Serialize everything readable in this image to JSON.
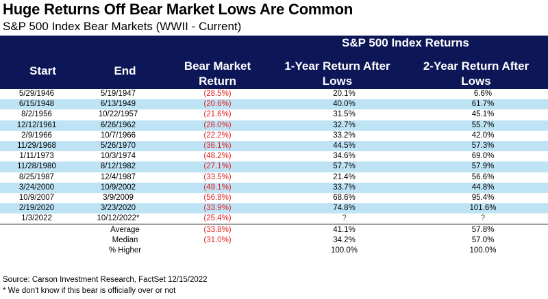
{
  "title": "Huge Returns Off Bear Market Lows Are Common",
  "subtitle": "S&P 500 Index Bear Markets (WWII - Current)",
  "header": {
    "group_label": "S&P 500 Index Returns",
    "start": "Start",
    "end": "End",
    "bear_line1": "Bear Market",
    "bear_line2": "Return",
    "one_year_line1": "1-Year Return After",
    "one_year_line2": "Lows",
    "two_year_line1": "2-Year Return After",
    "two_year_line2": "Lows"
  },
  "rows": [
    {
      "start": "5/29/1946",
      "end": "5/19/1947",
      "bear": "(28.5%)",
      "one": "20.1%",
      "two": "6.6%"
    },
    {
      "start": "6/15/1948",
      "end": "6/13/1949",
      "bear": "(20.6%)",
      "one": "40.0%",
      "two": "61.7%"
    },
    {
      "start": "8/2/1956",
      "end": "10/22/1957",
      "bear": "(21.6%)",
      "one": "31.5%",
      "two": "45.1%"
    },
    {
      "start": "12/12/1961",
      "end": "6/26/1962",
      "bear": "(28.0%)",
      "one": "32.7%",
      "two": "55.7%"
    },
    {
      "start": "2/9/1966",
      "end": "10/7/1966",
      "bear": "(22.2%)",
      "one": "33.2%",
      "two": "42.0%"
    },
    {
      "start": "11/29/1968",
      "end": "5/26/1970",
      "bear": "(36.1%)",
      "one": "44.5%",
      "two": "57.3%"
    },
    {
      "start": "1/11/1973",
      "end": "10/3/1974",
      "bear": "(48.2%)",
      "one": "34.6%",
      "two": "69.0%"
    },
    {
      "start": "11/28/1980",
      "end": "8/12/1982",
      "bear": "(27.1%)",
      "one": "57.7%",
      "two": "57.9%"
    },
    {
      "start": "8/25/1987",
      "end": "12/4/1987",
      "bear": "(33.5%)",
      "one": "21.4%",
      "two": "56.6%"
    },
    {
      "start": "3/24/2000",
      "end": "10/9/2002",
      "bear": "(49.1%)",
      "one": "33.7%",
      "two": "44.8%"
    },
    {
      "start": "10/9/2007",
      "end": "3/9/2009",
      "bear": "(56.8%)",
      "one": "68.6%",
      "two": "95.4%"
    },
    {
      "start": "2/19/2020",
      "end": "3/23/2020",
      "bear": "(33.9%)",
      "one": "74.8%",
      "two": "101.6%"
    },
    {
      "start": "1/3/2022",
      "end": "10/12/2022*",
      "bear": "(25.4%)",
      "one": "?",
      "two": "?"
    }
  ],
  "summary": [
    {
      "label": "Average",
      "bear": "(33.8%)",
      "one": "41.1%",
      "two": "57.8%"
    },
    {
      "label": "Median",
      "bear": "(31.0%)",
      "one": "34.2%",
      "two": "57.0%"
    },
    {
      "label": "% Higher",
      "bear": "",
      "one": "100.0%",
      "two": "100.0%"
    }
  ],
  "footnotes": {
    "source": "Source: Carson Investment Research, FactSet 12/15/2022",
    "note": "* We don't know if this bear is officially over or not"
  },
  "colors": {
    "header_bg": "#0d1657",
    "stripe": "#bee3f5",
    "negative": "#e02020",
    "unknown": "#2d6b14"
  }
}
